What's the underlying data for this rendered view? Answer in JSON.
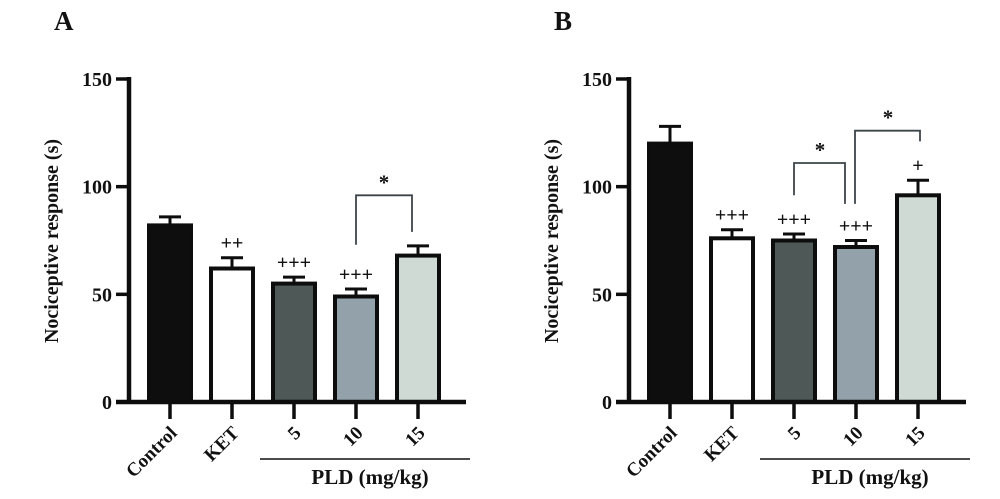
{
  "colors": {
    "background": "#ffffff",
    "bar_border": "#0d0d0d",
    "axis": "#0d0d0d",
    "bracket": "#3d4448",
    "text": "#111111"
  },
  "chart_data": [
    {
      "panel": "A",
      "type": "bar",
      "title": "",
      "xlabel": "",
      "ylabel": "Nociceptive response (s)",
      "ylim": [
        0,
        150
      ],
      "yticks": [
        0,
        50,
        100,
        150
      ],
      "grid": false,
      "legend": "none",
      "categories": [
        "Control",
        "KET",
        "5",
        "10",
        "15"
      ],
      "values": [
        82,
        62,
        55,
        49,
        68
      ],
      "errors": [
        4,
        5,
        3,
        3.5,
        4.5
      ],
      "bar_colors": [
        "#0e0e0e",
        "#ffffff",
        "#4d5857",
        "#93a2aa",
        "#cfdad5"
      ],
      "annotations": [
        "",
        "++",
        "+++",
        "+++",
        ""
      ],
      "brackets": [
        {
          "from": 3,
          "to": 4,
          "label": "*",
          "top": 96,
          "left_drop": 73,
          "right_drop": 79,
          "left_dx": 0,
          "right_dx": -6
        }
      ],
      "group_label": "PLD (mg/kg)",
      "group_from": 2,
      "group_to": 4
    },
    {
      "panel": "B",
      "type": "bar",
      "title": "",
      "xlabel": "",
      "ylabel": "Nociceptive response (s)",
      "ylim": [
        0,
        150
      ],
      "yticks": [
        0,
        50,
        100,
        150
      ],
      "grid": false,
      "legend": "none",
      "categories": [
        "Control",
        "KET",
        "5",
        "10",
        "15"
      ],
      "values": [
        120,
        76,
        75,
        72,
        96
      ],
      "errors": [
        8,
        4,
        3,
        3,
        7
      ],
      "bar_colors": [
        "#0e0e0e",
        "#ffffff",
        "#4d5857",
        "#93a2aa",
        "#cfdad5"
      ],
      "annotations": [
        "",
        "+++",
        "+++",
        "+++",
        "+"
      ],
      "brackets": [
        {
          "from": 2,
          "to": 3,
          "label": "*",
          "top": 111,
          "left_drop": 96,
          "right_drop": 92,
          "left_dx": 0,
          "right_dx": -11
        },
        {
          "from": 3,
          "to": 4,
          "label": "*",
          "top": 126,
          "left_drop": 92,
          "right_drop": 121,
          "left_dx": -1,
          "right_dx": 2
        }
      ],
      "group_label": "PLD (mg/kg)",
      "group_from": 2,
      "group_to": 4
    }
  ]
}
